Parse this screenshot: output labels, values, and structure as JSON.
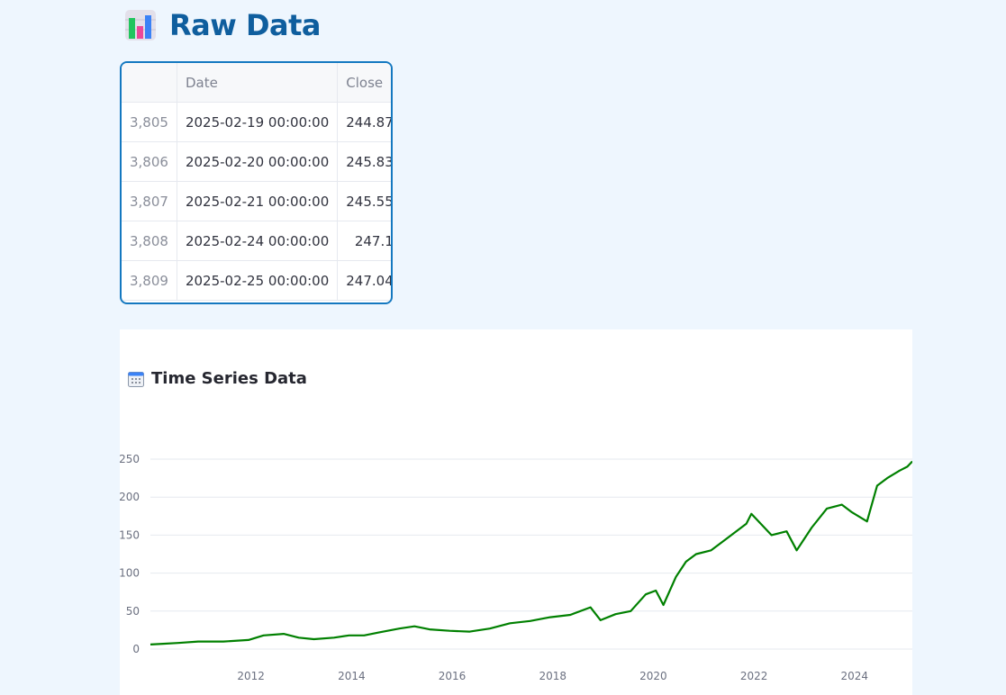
{
  "header": {
    "title": "Raw Data",
    "icon": "bar-chart-icon"
  },
  "table": {
    "columns": [
      "",
      "Date",
      "Close"
    ],
    "rows": [
      {
        "index": "3,805",
        "date": "2025-02-19 00:00:00",
        "close": "244.87"
      },
      {
        "index": "3,806",
        "date": "2025-02-20 00:00:00",
        "close": "245.83"
      },
      {
        "index": "3,807",
        "date": "2025-02-21 00:00:00",
        "close": "245.55"
      },
      {
        "index": "3,808",
        "date": "2025-02-24 00:00:00",
        "close": "247.1"
      },
      {
        "index": "3,809",
        "date": "2025-02-25 00:00:00",
        "close": "247.04"
      }
    ]
  },
  "chart_data": {
    "type": "line",
    "title": "Time Series Data",
    "title_icon": "calendar-icon",
    "line_color": "#008000",
    "accent_color": "#1478c0",
    "grid": true,
    "xlabel": "",
    "ylabel": "",
    "xlim": [
      2010.05,
      2025.2
    ],
    "ylim": [
      0,
      250
    ],
    "y_ticks": [
      "0",
      "50",
      "100",
      "150",
      "200",
      "250"
    ],
    "x_ticks": [
      "2012",
      "2014",
      "2016",
      "2018",
      "2020",
      "2022",
      "2024"
    ],
    "series": [
      {
        "x": [
          2010.05,
          2010.3,
          2010.6,
          2011.0,
          2011.5,
          2012.0,
          2012.3,
          2012.7,
          2013.0,
          2013.3,
          2013.7,
          2014.0,
          2014.3,
          2014.6,
          2015.0,
          2015.3,
          2015.6,
          2016.0,
          2016.4,
          2016.8,
          2017.2,
          2017.6,
          2018.0,
          2018.4,
          2018.8,
          2019.0,
          2019.3,
          2019.6,
          2019.9,
          2020.1,
          2020.25,
          2020.5,
          2020.7,
          2020.9,
          2021.2,
          2021.5,
          2021.9,
          2022.0,
          2022.4,
          2022.7,
          2022.9,
          2023.2,
          2023.5,
          2023.8,
          2024.0,
          2024.3,
          2024.5,
          2024.7,
          2024.95,
          2025.1,
          2025.2
        ],
        "y": [
          6,
          7,
          8,
          10,
          10,
          12,
          18,
          20,
          15,
          13,
          15,
          18,
          18,
          22,
          27,
          30,
          26,
          24,
          23,
          27,
          34,
          37,
          42,
          45,
          55,
          38,
          46,
          50,
          72,
          77,
          58,
          95,
          115,
          125,
          130,
          145,
          165,
          178,
          150,
          155,
          130,
          160,
          185,
          190,
          180,
          168,
          215,
          225,
          235,
          240,
          247
        ]
      }
    ]
  }
}
